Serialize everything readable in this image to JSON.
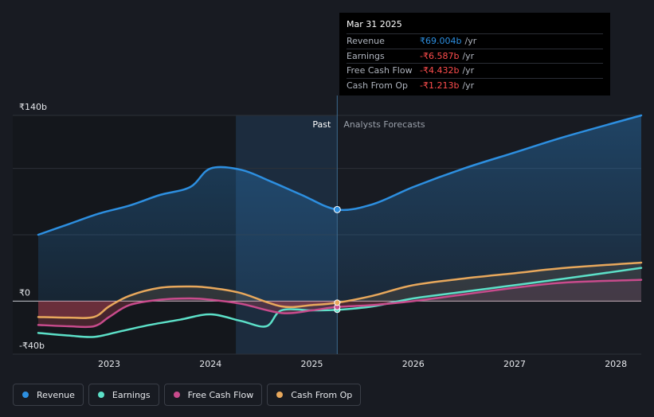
{
  "chart_data": {
    "type": "line",
    "title": "",
    "xlabel": "",
    "ylabel": "",
    "x_range": [
      2022.3,
      2028.25
    ],
    "ylim": [
      -40,
      140
    ],
    "x_ticks": [
      2023,
      2024,
      2025,
      2026,
      2027,
      2028
    ],
    "x_tick_labels": [
      "2023",
      "2024",
      "2025",
      "2026",
      "2027",
      "2028"
    ],
    "y_tick_labels": [
      {
        "value": 140,
        "label": "₹140b"
      },
      {
        "value": 0,
        "label": "₹0"
      },
      {
        "value": -40,
        "label": "-₹40b"
      }
    ],
    "gridlines_y": [
      140,
      100,
      50,
      0
    ],
    "divider_x": 2025.25,
    "highlight_start_x": 2024.25,
    "past_label": "Past",
    "forecast_label": "Analysts Forecasts",
    "series": [
      {
        "name": "Revenue",
        "color": "#2d8fe0",
        "x": [
          2022.3,
          2022.6,
          2022.9,
          2023.2,
          2023.5,
          2023.8,
          2024.0,
          2024.3,
          2024.6,
          2024.9,
          2025.25,
          2025.6,
          2026.0,
          2026.5,
          2027.0,
          2027.5,
          2028.25
        ],
        "values": [
          50,
          58,
          66,
          72,
          80,
          86,
          100,
          99,
          90,
          80,
          69,
          73,
          86,
          100,
          112,
          124,
          140
        ]
      },
      {
        "name": "Earnings",
        "color": "#5ce0c8",
        "x": [
          2022.3,
          2022.6,
          2022.85,
          2023.1,
          2023.4,
          2023.7,
          2024.0,
          2024.3,
          2024.55,
          2024.7,
          2025.0,
          2025.25,
          2025.6,
          2026.0,
          2026.5,
          2027.0,
          2027.5,
          2028.25
        ],
        "values": [
          -24,
          -26,
          -27,
          -23,
          -18,
          -14,
          -10,
          -15,
          -19,
          -7,
          -7,
          -6.587,
          -4,
          2,
          7,
          12,
          17,
          25
        ]
      },
      {
        "name": "Free Cash Flow",
        "color": "#c84b8c",
        "x": [
          2022.3,
          2022.6,
          2022.85,
          2023.0,
          2023.2,
          2023.5,
          2023.8,
          2024.0,
          2024.3,
          2024.7,
          2025.0,
          2025.25,
          2025.6,
          2026.0,
          2026.5,
          2027.0,
          2027.5,
          2028.25
        ],
        "values": [
          -18,
          -19,
          -19,
          -12,
          -3,
          1,
          2,
          1,
          -2,
          -9,
          -7,
          -4.432,
          -3,
          0,
          5,
          10,
          14,
          16
        ]
      },
      {
        "name": "Cash From Op",
        "color": "#e8a85c",
        "x": [
          2022.3,
          2022.6,
          2022.85,
          2023.0,
          2023.2,
          2023.5,
          2023.8,
          2024.0,
          2024.3,
          2024.7,
          2025.0,
          2025.25,
          2025.6,
          2026.0,
          2026.5,
          2027.0,
          2027.5,
          2028.25
        ],
        "values": [
          -12,
          -12.5,
          -12,
          -4,
          4,
          10,
          11,
          10,
          6,
          -4,
          -3,
          -1.213,
          4,
          12,
          17,
          21,
          25,
          29
        ]
      }
    ]
  },
  "tooltip": {
    "date": "Mar 31 2025",
    "rows": [
      {
        "label": "Revenue",
        "value": "₹69.004b",
        "unit": "/yr",
        "color": "#2d8fe0"
      },
      {
        "label": "Earnings",
        "value": "-₹6.587b",
        "unit": "/yr",
        "color": "#ff4d4d"
      },
      {
        "label": "Free Cash Flow",
        "value": "-₹4.432b",
        "unit": "/yr",
        "color": "#ff4d4d"
      },
      {
        "label": "Cash From Op",
        "value": "-₹1.213b",
        "unit": "/yr",
        "color": "#ff4d4d"
      }
    ]
  },
  "legend": [
    {
      "label": "Revenue",
      "color": "#2d8fe0"
    },
    {
      "label": "Earnings",
      "color": "#5ce0c8"
    },
    {
      "label": "Free Cash Flow",
      "color": "#c84b8c"
    },
    {
      "label": "Cash From Op",
      "color": "#e8a85c"
    }
  ]
}
